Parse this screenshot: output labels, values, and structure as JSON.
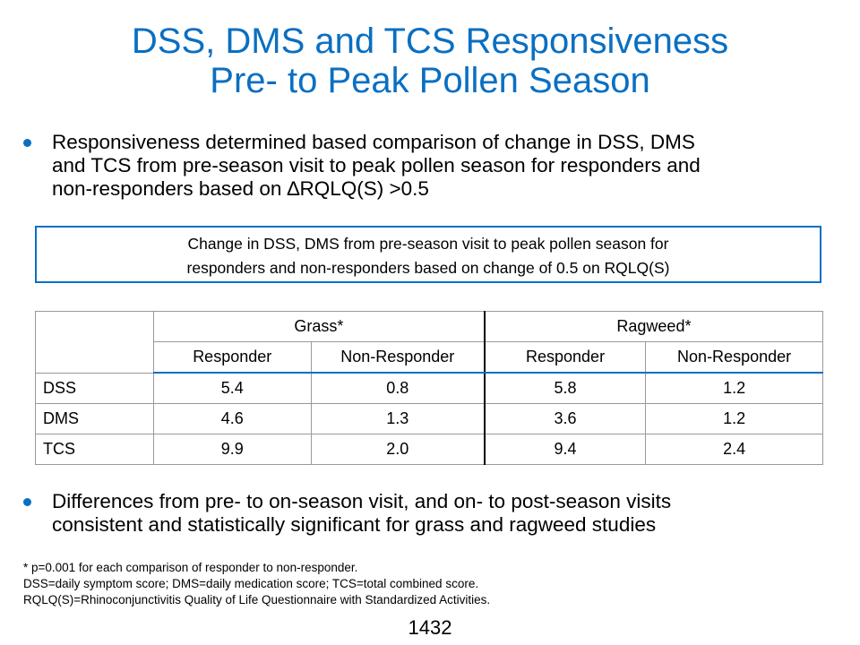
{
  "title": {
    "line1": "DSS, DMS and TCS Responsiveness",
    "line2": "Pre- to Peak Pollen Season"
  },
  "bullets": [
    {
      "lines": [
        "Responsiveness determined based comparison of change in DSS, DMS",
        "and TCS from pre-season visit to peak pollen season for responders and",
        "non-responders based on ∆RQLQ(S) >0.5"
      ]
    },
    {
      "lines": [
        "Differences from pre- to on-season visit, and on- to post-season visits",
        "consistent and statistically significant for grass and ragweed studies"
      ]
    }
  ],
  "callout": {
    "line1": "Change in DSS, DMS from pre-season visit to peak pollen season for",
    "line2": "responders and non-responders based on change of 0.5 on RQLQ(S)"
  },
  "table": {
    "groups": [
      "Grass*",
      "Ragweed*"
    ],
    "subheaders": [
      "Responder",
      "Non-Responder",
      "Responder",
      "Non-Responder"
    ],
    "rows": [
      {
        "label": "DSS",
        "values": [
          "5.4",
          "0.8",
          "5.8",
          "1.2"
        ]
      },
      {
        "label": "DMS",
        "values": [
          "4.6",
          "1.3",
          "3.6",
          "1.2"
        ]
      },
      {
        "label": "TCS",
        "values": [
          "9.9",
          "2.0",
          "9.4",
          "2.4"
        ]
      }
    ]
  },
  "notes": [
    "* p=0.001 for each comparison of responder to non-responder.",
    "DSS=daily symptom score; DMS=daily medication score; TCS=total combined score.",
    "RQLQ(S)=Rhinoconjunctivitis Quality of Life Questionnaire with Standardized Activities."
  ],
  "slide_number": "1432",
  "colors": {
    "accent": "#0a6fc2"
  }
}
